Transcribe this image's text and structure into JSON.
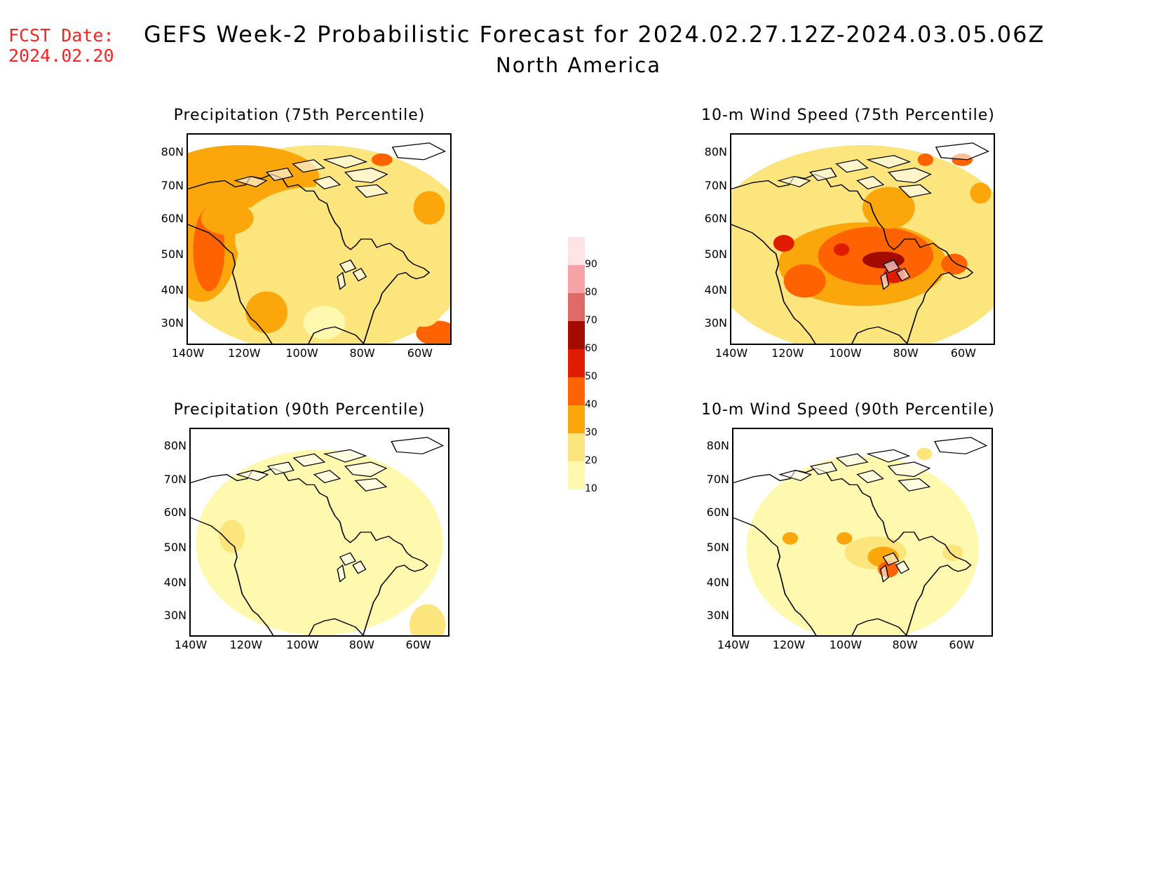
{
  "header": {
    "fcst_label": "FCST Date:",
    "fcst_date": "2024.02.20",
    "title": "GEFS Week-2 Probabilistic Forecast for 2024.02.27.12Z-2024.03.05.06Z",
    "region": "North America"
  },
  "panels": [
    {
      "title": "Precipitation (75th Percentile)"
    },
    {
      "title": "10-m Wind Speed (75th Percentile)"
    },
    {
      "title": "Precipitation (90th Percentile)"
    },
    {
      "title": "10-m Wind Speed (90th Percentile)"
    }
  ],
  "axes": {
    "lat_labels": [
      "80N",
      "70N",
      "60N",
      "50N",
      "40N",
      "30N"
    ],
    "lon_labels": [
      "140W",
      "120W",
      "100W",
      "80W",
      "60W"
    ]
  },
  "colorbar": {
    "levels": [
      "10",
      "20",
      "30",
      "40",
      "50",
      "60",
      "70",
      "80",
      "90"
    ],
    "colors": [
      "#fff9b0",
      "#fde57d",
      "#fba60a",
      "#ff6200",
      "#e01c00",
      "#a30a00",
      "#e06a68",
      "#f5a3a6",
      "#ffe3e6"
    ]
  }
}
